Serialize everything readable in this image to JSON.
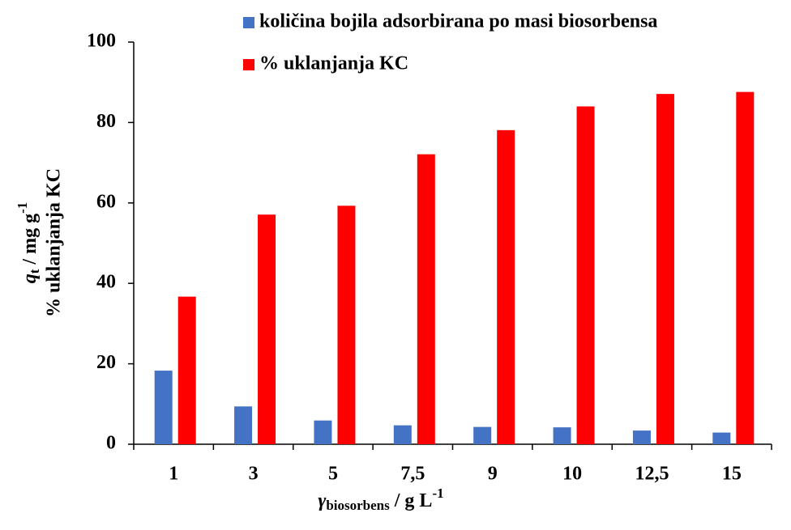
{
  "chart_data": {
    "type": "bar",
    "x_label": {
      "symbol": "γ",
      "subscript": "biosorbens",
      "unit": " / g L",
      "superscript": "-1"
    },
    "y_label": {
      "symbol": "q",
      "subscript": "t",
      "unit": " / mg g",
      "superscript": "-1",
      "line2": "% uklanjanja KC"
    },
    "categories": [
      "1",
      "3",
      "5",
      "7,5",
      "9",
      "10",
      "12,5",
      "15"
    ],
    "series": [
      {
        "name": "količina bojila adsorbirana po masi biosorbensa",
        "color": "#4472c4",
        "values": [
          18.3,
          9.4,
          5.9,
          4.7,
          4.3,
          4.2,
          3.4,
          2.9
        ]
      },
      {
        "name": "% uklanjanja KC",
        "color": "#ff0000",
        "values": [
          36.7,
          57.1,
          59.3,
          72.1,
          78.1,
          84.0,
          87.1,
          87.6
        ]
      }
    ],
    "ylim": [
      0,
      100
    ],
    "yticks": [
      0,
      20,
      40,
      60,
      80,
      100
    ],
    "grid": false
  }
}
